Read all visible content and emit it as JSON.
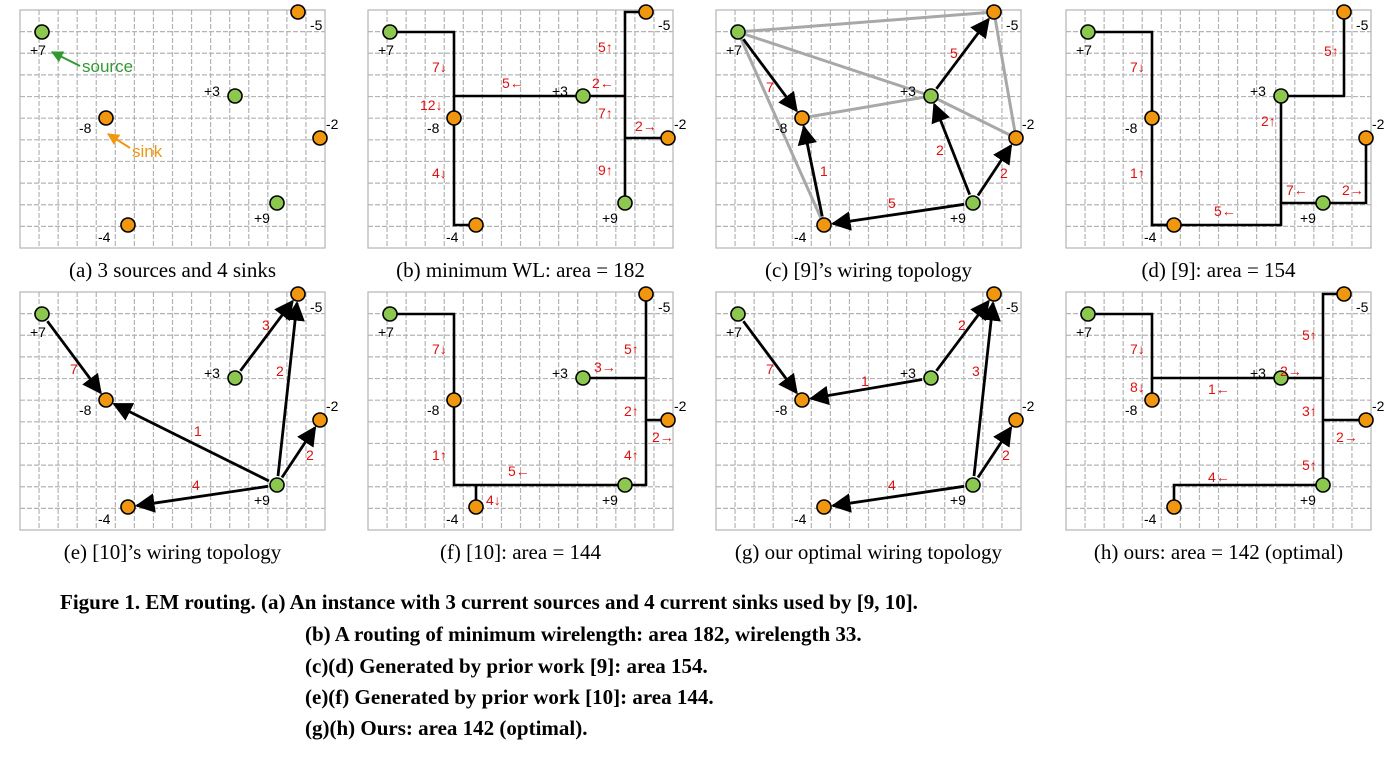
{
  "figure": {
    "caption": {
      "lead": "Figure 1. EM routing. (a) An instance with 3 current sources and 4 current sinks used by [9, 10].",
      "lines": [
        "(b) A routing of minimum wirelength: area 182, wirelength 33.",
        "(c)(d) Generated by prior work [9]: area 154.",
        "(e)(f) Generated by prior work [10]: area 144.",
        "(g)(h) Ours: area 142 (optimal)."
      ]
    },
    "colors": {
      "source": "#8cc850",
      "sink": "#f0960f",
      "grid": "#b4b4b4",
      "wire": "#000000",
      "topology_grey": "#a8a8a8",
      "flow_label": "#e01010",
      "source_note": "#2f9a2f",
      "sink_note": "#f0960f"
    },
    "nodes": [
      {
        "id": "s1",
        "label": "+7",
        "kind": "source"
      },
      {
        "id": "s2",
        "label": "+3",
        "kind": "source"
      },
      {
        "id": "s3",
        "label": "+9",
        "kind": "source"
      },
      {
        "id": "k1",
        "label": "-5",
        "kind": "sink"
      },
      {
        "id": "k2",
        "label": "-8",
        "kind": "sink"
      },
      {
        "id": "k3",
        "label": "-2",
        "kind": "sink"
      },
      {
        "id": "k4",
        "label": "-4",
        "kind": "sink"
      }
    ],
    "annotations": {
      "source": "source",
      "sink": "sink"
    },
    "panels": [
      {
        "id": "a",
        "caption": "(a) 3 sources and 4 sinks"
      },
      {
        "id": "b",
        "caption": "(b) minimum WL: area = 182"
      },
      {
        "id": "c",
        "caption": "(c) [9]’s wiring topology"
      },
      {
        "id": "d",
        "caption": "(d) [9]: area = 154"
      },
      {
        "id": "e",
        "caption": "(e) [10]’s wiring topology"
      },
      {
        "id": "f",
        "caption": "(f) [10]: area = 144"
      },
      {
        "id": "g",
        "caption": "(g) our optimal wiring topology"
      },
      {
        "id": "h",
        "caption": "(h) ours: area = 142 (optimal)"
      }
    ],
    "flow_labels": {
      "b": [
        "7↓",
        "12↓",
        "4↓",
        "5←",
        "5↑",
        "2←",
        "7↑",
        "2→",
        "9↑"
      ],
      "c": [
        "7",
        "1",
        "5",
        "5",
        "2",
        "2"
      ],
      "d": [
        "7↓",
        "1↑",
        "5←",
        "5↑",
        "2↑",
        "7←",
        "2→"
      ],
      "e": [
        "7",
        "1",
        "4",
        "3",
        "2",
        "2"
      ],
      "f": [
        "7↓",
        "1↑",
        "5←",
        "4↓",
        "5↑",
        "3→",
        "2↑",
        "2→",
        "4↑"
      ],
      "g": [
        "7",
        "1",
        "4",
        "2",
        "3",
        "2"
      ],
      "h": [
        "7↓",
        "8↓",
        "1←",
        "4←",
        "5↑",
        "2→",
        "3↑",
        "2→",
        "5↑"
      ]
    }
  }
}
